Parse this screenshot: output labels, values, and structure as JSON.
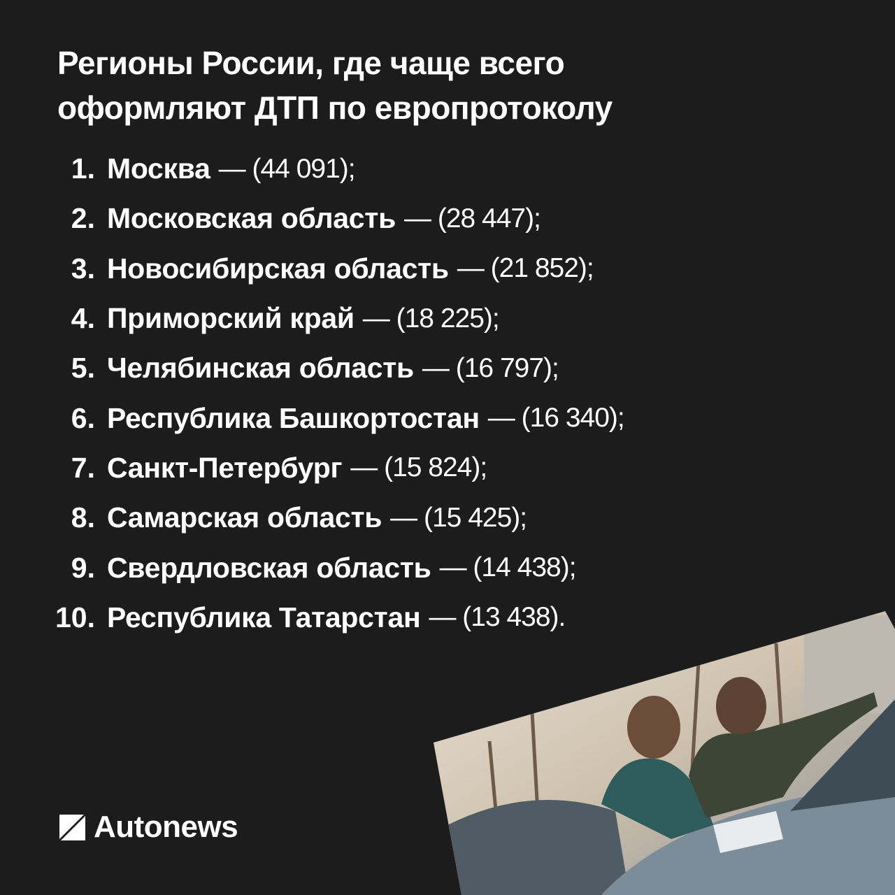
{
  "title": {
    "line1": "Регионы России, где чаще всего",
    "line2": "оформляют ДТП по европротоколу"
  },
  "regions": [
    {
      "rank": "1.",
      "name": "Москва",
      "value": "— (44 091);"
    },
    {
      "rank": "2.",
      "name": "Московская область",
      "value": "— (28 447);"
    },
    {
      "rank": "3.",
      "name": "Новосибирская область",
      "value": "— (21 852);"
    },
    {
      "rank": "4.",
      "name": "Приморский край",
      "value": "— (18 225);"
    },
    {
      "rank": "5.",
      "name": "Челябинская область",
      "value": "— (16 797);"
    },
    {
      "rank": "6.",
      "name": "Республика Башкортостан",
      "value": "— (16 340);"
    },
    {
      "rank": "7.",
      "name": "Санкт-Петербург",
      "value": "— (15 824);"
    },
    {
      "rank": "8.",
      "name": "Самарская область",
      "value": "— (15 425);"
    },
    {
      "rank": "9.",
      "name": "Свердловская область",
      "value": "— (14 438);"
    },
    {
      "rank": "10.",
      "name": "Республика Татарстан",
      "value": "— (13 438)."
    }
  ],
  "logo": {
    "text": "Autonews",
    "icon": "autonews-logo-mark"
  },
  "photo": {
    "subject": "two-men-filling-accident-report-on-car-hood"
  },
  "colors": {
    "background": "#1c1c1c",
    "text": "#ffffff"
  }
}
